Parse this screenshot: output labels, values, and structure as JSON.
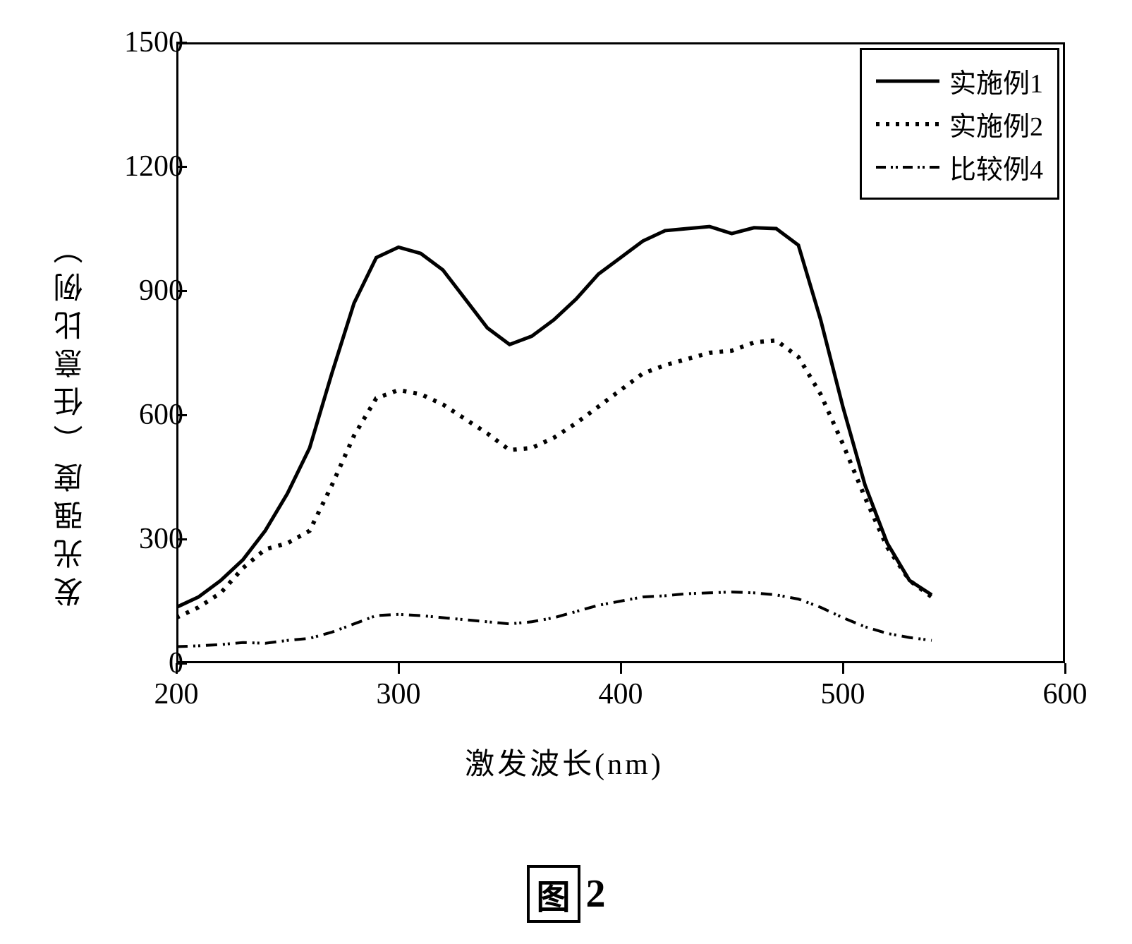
{
  "chart": {
    "type": "line",
    "y_axis_label": "发光强度（任意比例）",
    "x_axis_label": "激发波长(nm)",
    "xlim": [
      200,
      600
    ],
    "ylim": [
      0,
      1500
    ],
    "x_ticks": [
      200,
      300,
      400,
      500,
      600
    ],
    "y_ticks": [
      0,
      300,
      600,
      900,
      1200,
      1500
    ],
    "background_color": "#ffffff",
    "axis_color": "#000000",
    "border_width": 3,
    "label_fontsize": 42,
    "tick_fontsize": 42,
    "series": [
      {
        "name": "实施例1",
        "color": "#000000",
        "dash": "solid",
        "line_width": 5,
        "x": [
          200,
          210,
          220,
          230,
          240,
          250,
          260,
          270,
          280,
          290,
          300,
          310,
          320,
          330,
          340,
          350,
          360,
          370,
          380,
          390,
          400,
          410,
          420,
          430,
          440,
          450,
          460,
          470,
          480,
          490,
          500,
          510,
          520,
          530,
          540
        ],
        "y": [
          135,
          160,
          200,
          250,
          320,
          410,
          520,
          700,
          870,
          980,
          1005,
          990,
          950,
          880,
          810,
          770,
          790,
          830,
          880,
          940,
          980,
          1020,
          1045,
          1050,
          1055,
          1038,
          1052,
          1050,
          1010,
          830,
          620,
          430,
          290,
          200,
          165
        ]
      },
      {
        "name": "实施例2",
        "color": "#000000",
        "dash": "dotted",
        "line_width": 6,
        "x": [
          200,
          210,
          220,
          230,
          240,
          250,
          260,
          270,
          280,
          290,
          300,
          310,
          320,
          330,
          340,
          350,
          360,
          370,
          380,
          390,
          400,
          410,
          420,
          430,
          440,
          450,
          460,
          470,
          480,
          490,
          500,
          510,
          520,
          530,
          540
        ],
        "y": [
          110,
          135,
          170,
          230,
          275,
          290,
          320,
          430,
          550,
          640,
          660,
          650,
          625,
          590,
          555,
          515,
          520,
          545,
          580,
          620,
          660,
          700,
          720,
          735,
          750,
          755,
          775,
          780,
          740,
          650,
          530,
          400,
          280,
          200,
          160
        ]
      },
      {
        "name": "比较例4",
        "color": "#000000",
        "dash": "dashdot",
        "line_width": 4,
        "x": [
          200,
          210,
          220,
          230,
          240,
          250,
          260,
          270,
          280,
          290,
          300,
          310,
          320,
          330,
          340,
          350,
          360,
          370,
          380,
          390,
          400,
          410,
          420,
          430,
          440,
          450,
          460,
          470,
          480,
          490,
          500,
          510,
          520,
          530,
          540
        ],
        "y": [
          40,
          42,
          45,
          50,
          48,
          55,
          60,
          75,
          95,
          115,
          118,
          115,
          110,
          105,
          100,
          95,
          100,
          110,
          125,
          140,
          150,
          160,
          163,
          168,
          170,
          172,
          170,
          165,
          155,
          135,
          110,
          88,
          72,
          62,
          55
        ]
      }
    ],
    "legend": {
      "position": "top-right",
      "border_color": "#000000",
      "border_width": 3,
      "background": "#ffffff",
      "fontsize": 38
    }
  },
  "caption": {
    "prefix": "图",
    "number": "2",
    "fontsize": 56
  }
}
